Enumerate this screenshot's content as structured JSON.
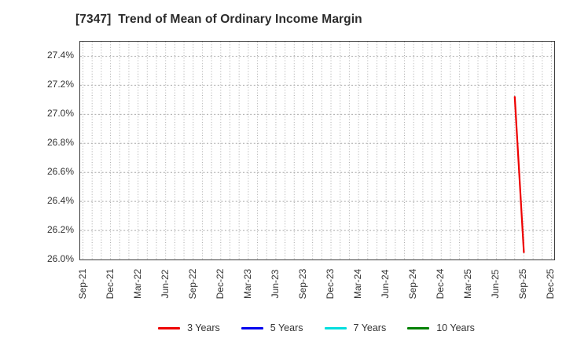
{
  "title": "[7347]  Trend of Mean of Ordinary Income Margin",
  "chart_data": {
    "type": "line",
    "title": "[7347]  Trend of Mean of Ordinary Income Margin",
    "xlabel": "",
    "ylabel": "",
    "ylim": [
      26.0,
      27.5
    ],
    "months_total": 51,
    "grid": "dotted gray, monthly vertical lines and 0.2% horizontal lines",
    "legend_position": "bottom-center",
    "x_tick_labels": [
      "Sep-21",
      "Dec-21",
      "Mar-22",
      "Jun-22",
      "Sep-22",
      "Dec-22",
      "Mar-23",
      "Jun-23",
      "Sep-23",
      "Dec-23",
      "Mar-24",
      "Jun-24",
      "Sep-24",
      "Dec-24",
      "Mar-25",
      "Jun-25",
      "Sep-25",
      "Dec-25"
    ],
    "y_ticks": [
      {
        "label": "27.4%",
        "value": 27.4
      },
      {
        "label": "27.2%",
        "value": 27.2
      },
      {
        "label": "27.0%",
        "value": 27.0
      },
      {
        "label": "26.8%",
        "value": 26.8
      },
      {
        "label": "26.6%",
        "value": 26.6
      },
      {
        "label": "26.4%",
        "value": 26.4
      },
      {
        "label": "26.2%",
        "value": 26.2
      },
      {
        "label": "26.0%",
        "value": 26.0
      }
    ],
    "series": [
      {
        "name": "3 Years",
        "color": "#ee0000",
        "points": [
          [
            "Aug-25",
            27.12
          ],
          [
            "Sep-25",
            26.05
          ]
        ]
      },
      {
        "name": "5 Years",
        "color": "#0000ee",
        "points": []
      },
      {
        "name": "7 Years",
        "color": "#00dede",
        "points": []
      },
      {
        "name": "10 Years",
        "color": "#008000",
        "points": []
      }
    ],
    "colors": {
      "axis_border": "#3c3c3c",
      "grid": "#a9a9a9",
      "text": "#333333",
      "background": "#ffffff"
    }
  }
}
